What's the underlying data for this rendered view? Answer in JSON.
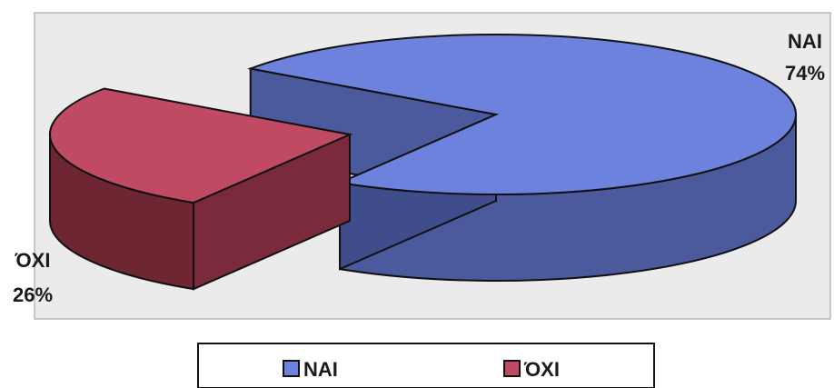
{
  "chart_data": {
    "type": "pie",
    "style": "3d-exploded",
    "slices": [
      {
        "label": "NAI",
        "value": 74,
        "percent_label": "74%",
        "color": "#6c82dc",
        "side_color": "#4a5a9c"
      },
      {
        "label": "ΌΧΙ",
        "value": 26,
        "percent_label": "26%",
        "color": "#c04a64",
        "side_color": "#6e2633"
      }
    ],
    "legend": {
      "position": "bottom",
      "entries": [
        "NAI",
        "ΌΧΙ"
      ]
    },
    "plot_background": "#ebebeb"
  }
}
